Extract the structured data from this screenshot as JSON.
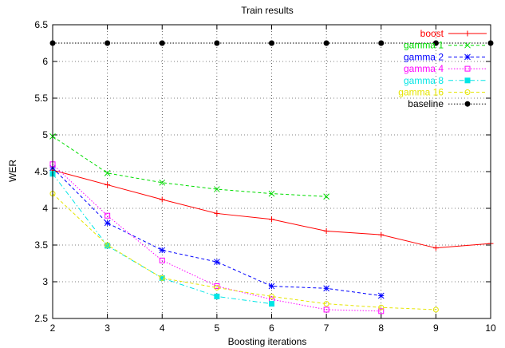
{
  "chart_data": {
    "type": "line",
    "title": "Train results",
    "xlabel": "Boosting iterations",
    "ylabel": "WER",
    "xlim": [
      2,
      10
    ],
    "ylim": [
      2.5,
      6.5
    ],
    "xticks": [
      "2",
      "3",
      "4",
      "5",
      "6",
      "7",
      "8",
      "9",
      "10"
    ],
    "yticks": [
      "2.5",
      "3",
      "3.5",
      "4",
      "4.5",
      "5",
      "5.5",
      "6",
      "6.5"
    ],
    "grid": true,
    "legend_position": "top-right",
    "series": [
      {
        "name": "boost",
        "color": "#ff0000",
        "marker": "plus",
        "dash": "solid",
        "x": [
          2,
          3,
          4,
          5,
          6,
          7,
          8,
          9,
          10
        ],
        "y": [
          4.52,
          4.32,
          4.12,
          3.93,
          3.85,
          3.69,
          3.64,
          3.46,
          3.52
        ]
      },
      {
        "name": "gamma 1",
        "color": "#00dd00",
        "marker": "x",
        "dash": "dashed",
        "x": [
          2,
          3,
          4,
          5,
          6,
          7
        ],
        "y": [
          4.98,
          4.48,
          4.35,
          4.26,
          4.2,
          4.16
        ]
      },
      {
        "name": "gamma 2",
        "color": "#0000ff",
        "marker": "star",
        "dash": "dashed",
        "x": [
          2,
          3,
          4,
          5,
          6,
          7,
          8
        ],
        "y": [
          4.55,
          3.8,
          3.43,
          3.27,
          2.94,
          2.91,
          2.81
        ]
      },
      {
        "name": "gamma 4",
        "color": "#ff00ff",
        "marker": "square-open",
        "dash": "dotted",
        "x": [
          2,
          3,
          4,
          5,
          6,
          7,
          8
        ],
        "y": [
          4.6,
          3.9,
          3.29,
          2.94,
          2.76,
          2.62,
          2.6
        ]
      },
      {
        "name": "gamma 8",
        "color": "#00e5e5",
        "marker": "square-filled",
        "dash": "dashdot",
        "x": [
          2,
          3,
          4,
          5,
          6
        ],
        "y": [
          4.47,
          3.49,
          3.05,
          2.8,
          2.7
        ]
      },
      {
        "name": "gamma 16",
        "color": "#e5e500",
        "marker": "circle-open",
        "dash": "dashed",
        "x": [
          2,
          3,
          4,
          5,
          6,
          7,
          8,
          9
        ],
        "y": [
          4.2,
          3.5,
          3.05,
          2.92,
          2.8,
          2.7,
          2.65,
          2.62
        ]
      },
      {
        "name": "baseline",
        "color": "#000000",
        "marker": "circle-filled",
        "dash": "dotted",
        "x": [
          2,
          3,
          4,
          5,
          6,
          7,
          8,
          9,
          10
        ],
        "y": [
          6.25,
          6.25,
          6.25,
          6.25,
          6.25,
          6.25,
          6.25,
          6.25,
          6.25
        ]
      }
    ]
  }
}
